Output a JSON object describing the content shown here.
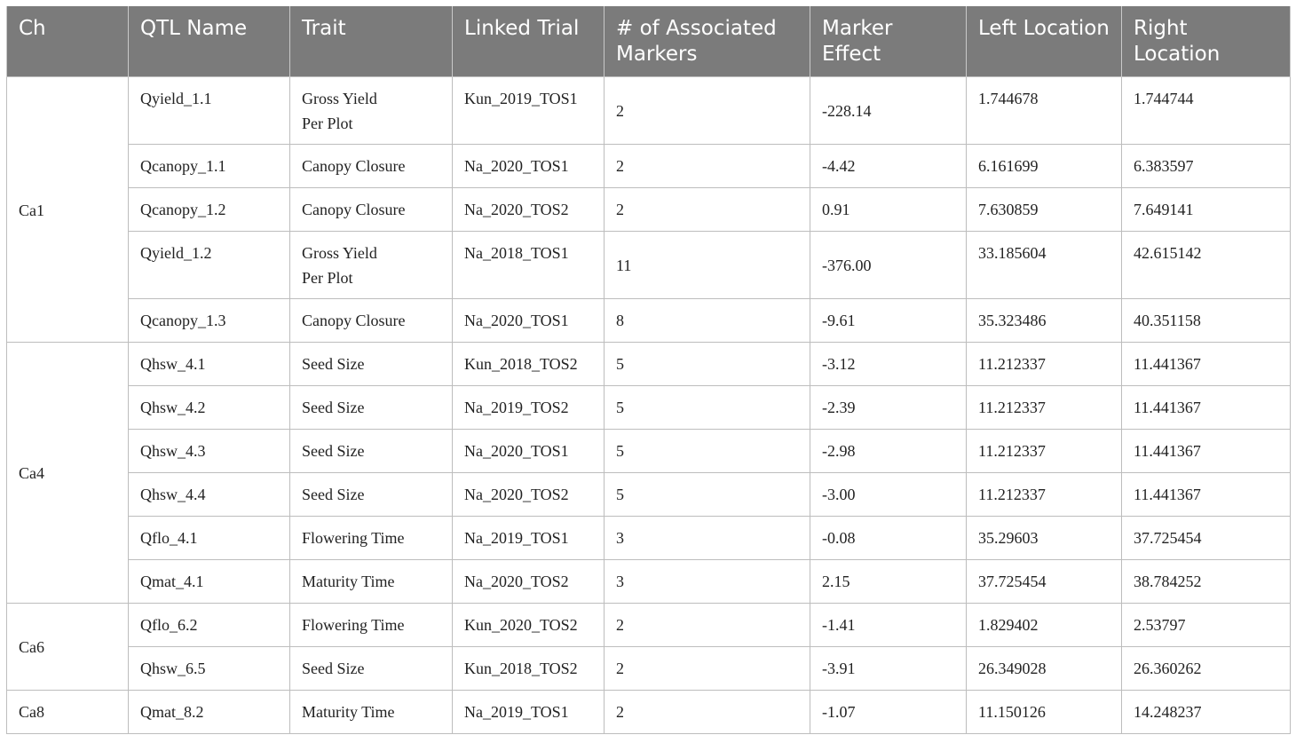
{
  "headers": [
    "Ch",
    "QTL Name",
    "Trait",
    "Linked Trial",
    "# of Associated Markers",
    "Marker Effect",
    "Left Location",
    "Right Location"
  ],
  "groups": [
    {
      "ch": "Ca1",
      "rows": [
        {
          "qtl": "Qyield_1.1",
          "trait": [
            "Gross Yield",
            "Per Plot"
          ],
          "trial": "Kun_2019_TOS1",
          "markers": "2",
          "effect": "-228.14",
          "left": "1.744678",
          "right": "1.744744"
        },
        {
          "qtl": "Qcanopy_1.1",
          "trait": [
            "Canopy Closure"
          ],
          "trial": "Na_2020_TOS1",
          "markers": "2",
          "effect": "-4.42",
          "left": "6.161699",
          "right": "6.383597"
        },
        {
          "qtl": "Qcanopy_1.2",
          "trait": [
            "Canopy Closure"
          ],
          "trial": "Na_2020_TOS2",
          "markers": "2",
          "effect": "0.91",
          "left": "7.630859",
          "right": "7.649141"
        },
        {
          "qtl": "Qyield_1.2",
          "trait": [
            "Gross Yield",
            "Per Plot"
          ],
          "trial": "Na_2018_TOS1",
          "markers": "11",
          "effect": "-376.00",
          "left": "33.185604",
          "right": "42.615142"
        },
        {
          "qtl": "Qcanopy_1.3",
          "trait": [
            "Canopy Closure"
          ],
          "trial": "Na_2020_TOS1",
          "markers": "8",
          "effect": "-9.61",
          "left": "35.323486",
          "right": "40.351158"
        }
      ]
    },
    {
      "ch": "Ca4",
      "rows": [
        {
          "qtl": "Qhsw_4.1",
          "trait": [
            "Seed Size"
          ],
          "trial": "Kun_2018_TOS2",
          "markers": "5",
          "effect": "-3.12",
          "left": "11.212337",
          "right": "11.441367"
        },
        {
          "qtl": "Qhsw_4.2",
          "trait": [
            "Seed Size"
          ],
          "trial": "Na_2019_TOS2",
          "markers": "5",
          "effect": "-2.39",
          "left": "11.212337",
          "right": "11.441367"
        },
        {
          "qtl": "Qhsw_4.3",
          "trait": [
            "Seed Size"
          ],
          "trial": "Na_2020_TOS1",
          "markers": "5",
          "effect": "-2.98",
          "left": "11.212337",
          "right": "11.441367"
        },
        {
          "qtl": "Qhsw_4.4",
          "trait": [
            "Seed Size"
          ],
          "trial": "Na_2020_TOS2",
          "markers": "5",
          "effect": "-3.00",
          "left": "11.212337",
          "right": "11.441367"
        },
        {
          "qtl": "Qflo_4.1",
          "trait": [
            "Flowering Time"
          ],
          "trial": "Na_2019_TOS1",
          "markers": "3",
          "effect": "-0.08",
          "left": "35.29603",
          "right": "37.725454"
        },
        {
          "qtl": "Qmat_4.1",
          "trait": [
            "Maturity Time"
          ],
          "trial": "Na_2020_TOS2",
          "markers": "3",
          "effect": "2.15",
          "left": "37.725454",
          "right": "38.784252"
        }
      ]
    },
    {
      "ch": "Ca6",
      "rows": [
        {
          "qtl": "Qflo_6.2",
          "trait": [
            "Flowering Time"
          ],
          "trial": "Kun_2020_TOS2",
          "markers": "2",
          "effect": "-1.41",
          "left": "1.829402",
          "right": "2.53797"
        },
        {
          "qtl": "Qhsw_6.5",
          "trait": [
            "Seed Size"
          ],
          "trial": "Kun_2018_TOS2",
          "markers": "2",
          "effect": "-3.91",
          "left": "26.349028",
          "right": "26.360262"
        }
      ]
    },
    {
      "ch": "Ca8",
      "rows": [
        {
          "qtl": "Qmat_8.2",
          "trait": [
            "Maturity Time"
          ],
          "trial": "Na_2019_TOS1",
          "markers": "2",
          "effect": "-1.07",
          "left": "11.150126",
          "right": "14.248237"
        }
      ]
    }
  ]
}
